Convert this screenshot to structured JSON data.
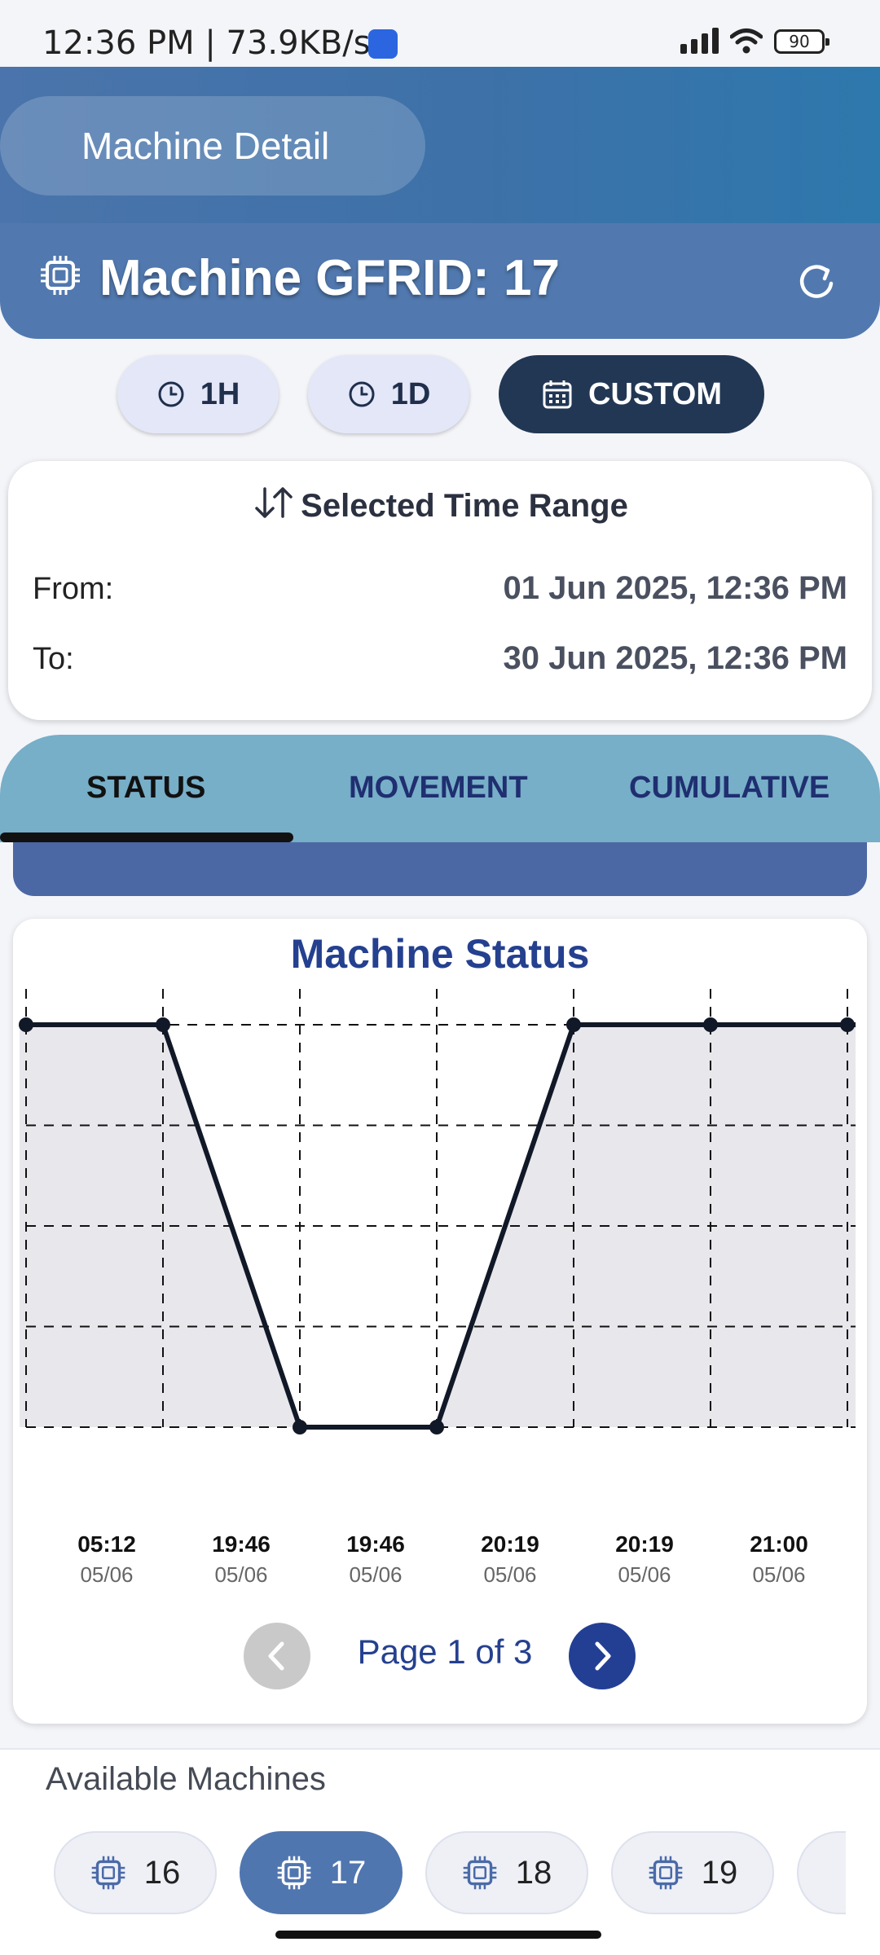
{
  "status_bar": {
    "time": "12:36 PM | 73.9KB/s",
    "battery": "90"
  },
  "header": {
    "title": "Machine Detail",
    "machine_title": "Machine GFRID: 17"
  },
  "range_buttons": [
    {
      "label": "1H",
      "icon": "clock-icon",
      "active": false
    },
    {
      "label": "1D",
      "icon": "clock-icon",
      "active": false
    },
    {
      "label": "CUSTOM",
      "icon": "calendar-icon",
      "active": true
    }
  ],
  "time_range": {
    "heading": "Selected Time Range",
    "from_label": "From:",
    "from_value": "01 Jun 2025, 12:36 PM",
    "to_label": "To:",
    "to_value": "30 Jun 2025, 12:36 PM"
  },
  "tabs": [
    {
      "label": "STATUS",
      "active": true
    },
    {
      "label": "MOVEMENT",
      "active": false
    },
    {
      "label": "CUMULATIVE",
      "active": false
    }
  ],
  "chart_data": {
    "type": "line",
    "title": "Machine Status",
    "values": [
      1,
      1,
      0,
      0,
      1,
      1,
      1
    ],
    "ylim": [
      0,
      1
    ],
    "y_gridlines": 5,
    "tick_labels": [
      {
        "time": "05:12",
        "date": "05/06"
      },
      {
        "time": "19:46",
        "date": "05/06"
      },
      {
        "time": "19:46",
        "date": "05/06"
      },
      {
        "time": "20:19",
        "date": "05/06"
      },
      {
        "time": "20:19",
        "date": "05/06"
      },
      {
        "time": "21:00",
        "date": "05/06"
      }
    ],
    "colors": {
      "line": "#111827",
      "fill": "#e8e8ec"
    },
    "grid": true
  },
  "pager": {
    "text": "Page 1 of 3",
    "prev_enabled": false,
    "next_enabled": true
  },
  "available_machines": {
    "title": "Available Machines",
    "items": [
      {
        "label": "16",
        "active": false
      },
      {
        "label": "17",
        "active": true
      },
      {
        "label": "18",
        "active": false
      },
      {
        "label": "19",
        "active": false
      }
    ]
  },
  "colors": {
    "header": "#4a74ab",
    "machine_bar": "#5179af",
    "custom_button": "#223754",
    "tabs": "#77aec8",
    "accent": "#24408f"
  }
}
